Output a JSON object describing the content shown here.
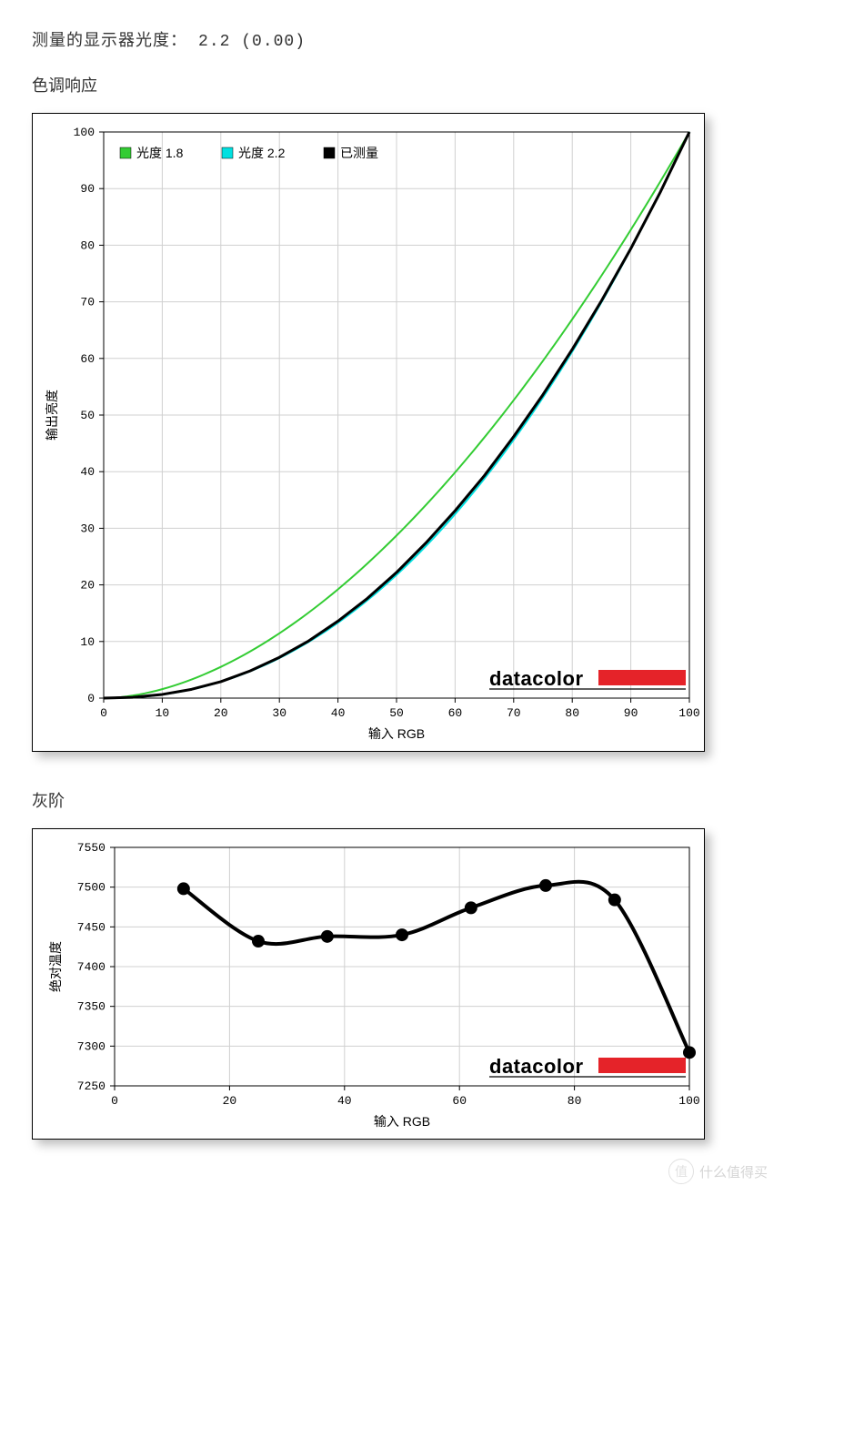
{
  "header": {
    "label": "测量的显示器光度：",
    "value": "2.2 (0.00)"
  },
  "chart1": {
    "title": "色调响应",
    "type": "line",
    "xlabel": "输入 RGB",
    "ylabel": "输出亮度",
    "xlim": [
      0,
      100
    ],
    "ylim": [
      0,
      100
    ],
    "xtick_step": 10,
    "ytick_step": 10,
    "grid_color": "#d0d0d0",
    "background_color": "#ffffff",
    "border_color": "#000000",
    "gamma18": 1.8,
    "gamma22": 2.2,
    "series": [
      {
        "name": "光度 1.8",
        "color": "#33cc33",
        "width": 2,
        "points": "gamma18"
      },
      {
        "name": "光度 2.2",
        "color": "#00e0e0",
        "width": 2,
        "points": "gamma22"
      },
      {
        "name": "已测量",
        "color": "#000000",
        "width": 3,
        "points": "measured"
      }
    ],
    "measured_x": [
      0,
      5,
      10,
      15,
      20,
      25,
      30,
      35,
      40,
      45,
      50,
      55,
      60,
      65,
      70,
      75,
      80,
      85,
      90,
      95,
      100
    ],
    "measured_y": [
      0,
      0.15,
      0.65,
      1.55,
      2.9,
      4.8,
      7.2,
      10.1,
      13.6,
      17.6,
      22.2,
      27.4,
      33.1,
      39.3,
      46.2,
      53.6,
      61.6,
      70.2,
      79.4,
      89.3,
      100
    ],
    "legend_items": [
      {
        "swatch": "#33cc33",
        "label": "光度 1.8"
      },
      {
        "swatch": "#00e0e0",
        "label": "光度 2.2"
      },
      {
        "swatch": "#000000",
        "label": "已测量"
      }
    ],
    "brand": {
      "text": "datacolor",
      "bar_color": "#e52329"
    },
    "axis_fontsize": 13,
    "label_fontsize": 14
  },
  "chart2": {
    "title": "灰阶",
    "type": "line",
    "xlabel": "输入 RGB",
    "ylabel": "绝对温度",
    "xlim": [
      0,
      100
    ],
    "ylim": [
      7250,
      7550
    ],
    "xtick_step": 20,
    "ytick_step": 50,
    "grid_color": "#d0d0d0",
    "background_color": "#ffffff",
    "border_color": "#000000",
    "line_color": "#000000",
    "line_width": 4,
    "marker_color": "#000000",
    "marker_radius": 7,
    "points_x": [
      12,
      25,
      37,
      50,
      62,
      75,
      87,
      100
    ],
    "points_y": [
      7498,
      7432,
      7438,
      7440,
      7474,
      7502,
      7484,
      7292
    ],
    "brand": {
      "text": "datacolor",
      "bar_color": "#e52329"
    },
    "axis_fontsize": 13,
    "label_fontsize": 14
  },
  "watermark": {
    "symbol": "值",
    "text": "什么值得买"
  }
}
